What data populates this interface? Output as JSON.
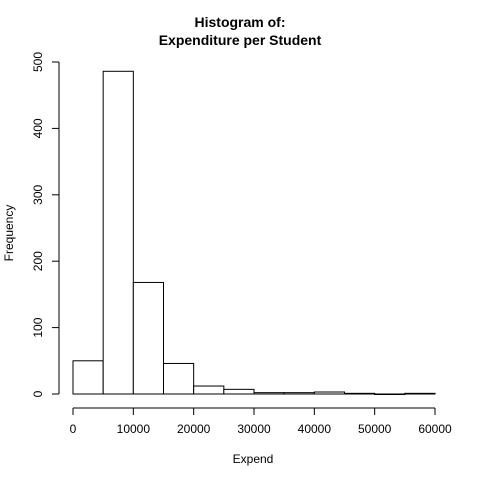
{
  "chart_data": {
    "type": "bar",
    "title": [
      "Histogram of:",
      "Expenditure per Student"
    ],
    "xlabel": "Expend",
    "ylabel": "Frequency",
    "xlim": [
      0,
      60000
    ],
    "ylim": [
      0,
      500
    ],
    "bin_width": 5000,
    "x_ticks": [
      "0",
      "10000",
      "20000",
      "30000",
      "40000",
      "50000",
      "60000"
    ],
    "y_ticks": [
      "0",
      "100",
      "200",
      "300",
      "400",
      "500"
    ],
    "bins": [
      {
        "start": 0,
        "end": 5000,
        "count": 50
      },
      {
        "start": 5000,
        "end": 10000,
        "count": 486
      },
      {
        "start": 10000,
        "end": 15000,
        "count": 168
      },
      {
        "start": 15000,
        "end": 20000,
        "count": 46
      },
      {
        "start": 20000,
        "end": 25000,
        "count": 12
      },
      {
        "start": 25000,
        "end": 30000,
        "count": 7
      },
      {
        "start": 30000,
        "end": 35000,
        "count": 2
      },
      {
        "start": 35000,
        "end": 40000,
        "count": 2
      },
      {
        "start": 40000,
        "end": 45000,
        "count": 3
      },
      {
        "start": 45000,
        "end": 50000,
        "count": 1
      },
      {
        "start": 50000,
        "end": 55000,
        "count": 0
      },
      {
        "start": 55000,
        "end": 60000,
        "count": 1
      }
    ],
    "grid": false,
    "legend": "none"
  }
}
